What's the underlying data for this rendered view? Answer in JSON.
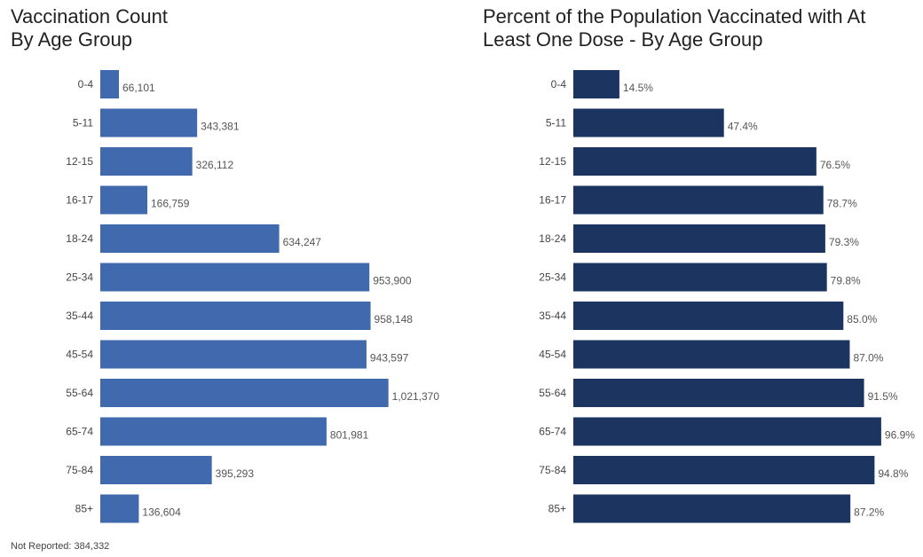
{
  "chart_data": [
    {
      "type": "bar",
      "orientation": "horizontal",
      "title": "Vaccination Count By Age Group",
      "title_lines": [
        "Vaccination Count",
        "By Age Group"
      ],
      "categories": [
        "0-4",
        "5-11",
        "12-15",
        "16-17",
        "18-24",
        "25-34",
        "35-44",
        "45-54",
        "55-64",
        "65-74",
        "75-84",
        "85+"
      ],
      "values": [
        66101,
        343381,
        326112,
        166759,
        634247,
        953900,
        958148,
        943597,
        1021370,
        801981,
        395293,
        136604
      ],
      "data_labels": [
        "66,101",
        "343,381",
        "326,112",
        "166,759",
        "634,247",
        "953,900",
        "958,148",
        "943,597",
        "1,021,370",
        "801,981",
        "395,293",
        "136,604"
      ],
      "xlim": [
        0,
        1120000
      ],
      "grid": false,
      "color": "#4169ad"
    },
    {
      "type": "bar",
      "orientation": "horizontal",
      "title": "Percent of the Population Vaccinated with At Least One Dose - By Age Group",
      "categories": [
        "0-4",
        "5-11",
        "12-15",
        "16-17",
        "18-24",
        "25-34",
        "35-44",
        "45-54",
        "55-64",
        "65-74",
        "75-84",
        "85+"
      ],
      "values": [
        14.5,
        47.4,
        76.5,
        78.7,
        79.3,
        79.8,
        85.0,
        87.0,
        91.5,
        96.9,
        94.8,
        87.2
      ],
      "data_labels": [
        "14.5%",
        "47.4%",
        "76.5%",
        "78.7%",
        "79.3%",
        "79.8%",
        "85.0%",
        "87.0%",
        "91.5%",
        "96.9%",
        "94.8%",
        "87.2%"
      ],
      "xlim": [
        0,
        100
      ],
      "grid": false,
      "color": "#1b3560"
    }
  ],
  "footnote": "Not Reported: 384,332"
}
